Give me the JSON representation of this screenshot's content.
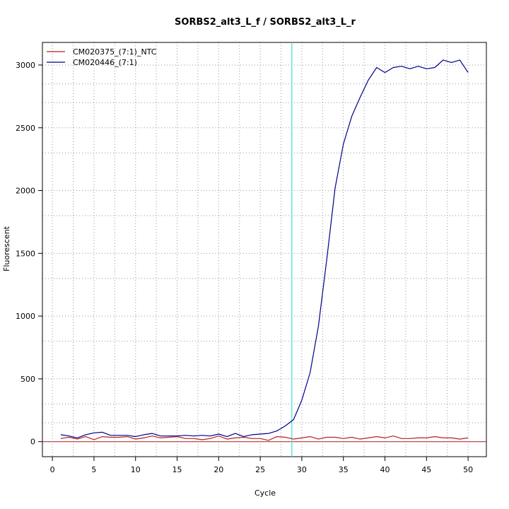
{
  "chart_data": {
    "type": "line",
    "title": "SORBS2_alt3_L_f / SORBS2_alt3_L_r",
    "xlabel": "Cycle",
    "ylabel": "Fluorescent",
    "xlim": [
      -1.2,
      52.2
    ],
    "ylim": [
      -120,
      3180
    ],
    "x_ticks": [
      0,
      5,
      10,
      15,
      20,
      25,
      30,
      35,
      40,
      45,
      50
    ],
    "y_ticks": [
      0,
      500,
      1000,
      1500,
      2000,
      2500,
      3000
    ],
    "x_tick_labels": [
      "0",
      "5",
      "10",
      "15",
      "20",
      "25",
      "30",
      "35",
      "40",
      "45",
      "50"
    ],
    "y_tick_labels": [
      "0",
      "500",
      "1000",
      "1500",
      "2000",
      "2500",
      "3000"
    ],
    "x_grid": [
      0,
      2.5,
      5,
      7.5,
      10,
      12.5,
      15,
      17.5,
      20,
      22.5,
      25,
      27.5,
      30,
      32.5,
      35,
      37.5,
      40,
      42.5,
      45,
      47.5,
      50
    ],
    "y_grid": [
      0,
      150,
      300,
      500,
      800,
      1000,
      1300,
      1500,
      1800,
      2000,
      2300,
      2500,
      2700,
      2850,
      3000
    ],
    "grid": true,
    "legend_position": "top-left",
    "threshold_line": {
      "x": 28.8,
      "color": "#40e0d0"
    },
    "baseline": {
      "y": 0,
      "color": "#b22222"
    },
    "x": [
      1,
      2,
      3,
      4,
      5,
      6,
      7,
      8,
      9,
      10,
      11,
      12,
      13,
      14,
      15,
      16,
      17,
      18,
      19,
      20,
      21,
      22,
      23,
      24,
      25,
      26,
      27,
      28,
      29,
      30,
      31,
      32,
      33,
      34,
      35,
      36,
      37,
      38,
      39,
      40,
      41,
      42,
      43,
      44,
      45,
      46,
      47,
      48,
      49,
      50
    ],
    "series": [
      {
        "name": "CM020375_(7:1)_NTC",
        "color": "#b22222",
        "values": [
          25,
          35,
          20,
          40,
          15,
          40,
          35,
          35,
          40,
          20,
          30,
          45,
          30,
          35,
          40,
          25,
          25,
          15,
          25,
          45,
          20,
          30,
          35,
          25,
          25,
          10,
          40,
          35,
          20,
          30,
          40,
          20,
          35,
          35,
          25,
          35,
          20,
          30,
          40,
          30,
          45,
          25,
          25,
          30,
          30,
          40,
          30,
          30,
          20,
          30
        ]
      },
      {
        "name": "CM020446_(7:1)",
        "color": "#00008b",
        "values": [
          55,
          45,
          30,
          55,
          70,
          75,
          50,
          50,
          50,
          40,
          55,
          65,
          45,
          45,
          45,
          50,
          45,
          50,
          45,
          60,
          40,
          65,
          40,
          55,
          60,
          65,
          85,
          125,
          175,
          330,
          550,
          920,
          1450,
          2020,
          2370,
          2590,
          2740,
          2880,
          2980,
          2940,
          2980,
          2990,
          2970,
          2990,
          2970,
          2980,
          3040,
          3020,
          3040,
          2940
        ]
      }
    ]
  }
}
